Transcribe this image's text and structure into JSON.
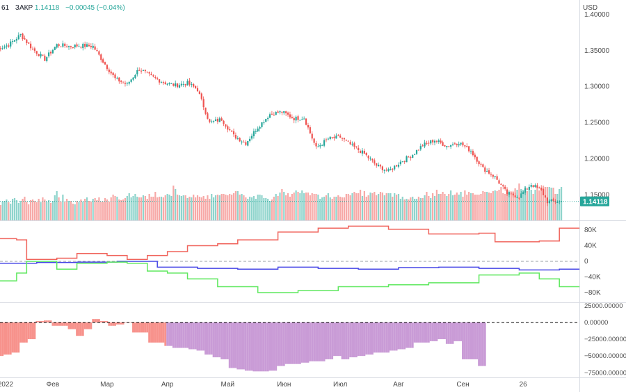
{
  "header": {
    "symbol_fragment": "61",
    "close_label": "ЗАКР",
    "close_value": "1.14118",
    "change": "−0.00045 (−0.04%)"
  },
  "currency_label": "USD",
  "last_price_tag": "1.14118",
  "colors": {
    "up": "#26a69a",
    "down": "#ef5350",
    "volume_up": "#8fd4cc",
    "volume_down": "#f7a9a7",
    "cot_red": "#f0645c",
    "cot_blue": "#4646e6",
    "cot_green": "#5ee85e",
    "hist_red": "#f7928c",
    "hist_purple": "#c99bd6"
  },
  "chart_data": [
    {
      "type": "candlestick",
      "title": "",
      "ylim": [
        1.115,
        1.42
      ],
      "y_ticks": [
        "1.40000",
        "1.35000",
        "1.30000",
        "1.25000",
        "1.20000",
        "1.15000"
      ],
      "x_ticks": [
        "2022",
        "Фев",
        "Мар",
        "Апр",
        "Май",
        "Июн",
        "Июл",
        "Авг",
        "Сен",
        "26"
      ],
      "close_anchors": [
        [
          0,
          1.352
        ],
        [
          6,
          1.358
        ],
        [
          12,
          1.372
        ],
        [
          18,
          1.352
        ],
        [
          24,
          1.338
        ],
        [
          30,
          1.358
        ],
        [
          36,
          1.356
        ],
        [
          42,
          1.357
        ],
        [
          48,
          1.356
        ],
        [
          53,
          1.335
        ],
        [
          59,
          1.311
        ],
        [
          65,
          1.303
        ],
        [
          71,
          1.325
        ],
        [
          77,
          1.314
        ],
        [
          83,
          1.306
        ],
        [
          89,
          1.302
        ],
        [
          95,
          1.305
        ],
        [
          100,
          1.296
        ],
        [
          106,
          1.25
        ],
        [
          112,
          1.255
        ],
        [
          118,
          1.232
        ],
        [
          124,
          1.222
        ],
        [
          130,
          1.244
        ],
        [
          136,
          1.262
        ],
        [
          142,
          1.265
        ],
        [
          148,
          1.256
        ],
        [
          153,
          1.257
        ],
        [
          159,
          1.215
        ],
        [
          165,
          1.228
        ],
        [
          171,
          1.23
        ],
        [
          177,
          1.218
        ],
        [
          183,
          1.207
        ],
        [
          189,
          1.191
        ],
        [
          195,
          1.183
        ],
        [
          201,
          1.196
        ],
        [
          207,
          1.206
        ],
        [
          212,
          1.219
        ],
        [
          218,
          1.226
        ],
        [
          224,
          1.218
        ],
        [
          230,
          1.223
        ],
        [
          236,
          1.211
        ],
        [
          242,
          1.187
        ],
        [
          248,
          1.175
        ],
        [
          254,
          1.152
        ],
        [
          260,
          1.148
        ],
        [
          266,
          1.165
        ],
        [
          271,
          1.156
        ],
        [
          274,
          1.141
        ]
      ],
      "last_close": 1.14118
    },
    {
      "type": "bar",
      "title": "",
      "x_ticks": [],
      "series": [
        {
          "values": [
            22,
            24,
            22,
            27,
            28,
            30,
            26,
            24,
            31,
            32,
            29,
            25,
            28,
            31,
            34,
            27,
            23,
            29,
            30,
            28,
            26,
            31,
            26,
            33,
            30,
            27,
            29,
            25,
            28,
            36,
            42,
            33,
            27,
            37,
            27,
            31,
            28,
            28,
            24,
            23,
            28,
            26,
            30,
            27,
            31,
            33,
            28,
            27,
            31,
            32,
            29,
            33,
            27,
            27,
            32,
            30,
            27,
            33,
            37,
            35,
            34,
            30,
            29,
            30,
            32,
            35,
            39,
            33,
            35,
            38,
            34,
            33,
            33,
            36,
            35,
            31,
            38,
            34,
            34,
            41,
            33,
            34,
            34,
            33,
            36,
            38,
            37,
            35,
            50,
            45,
            37,
            36,
            35,
            36,
            36,
            32,
            34,
            33,
            37,
            33,
            36,
            34,
            33,
            35,
            31,
            36,
            31,
            38,
            33,
            36,
            37,
            36,
            38,
            38,
            37,
            36,
            38,
            37,
            39,
            42,
            42,
            37,
            38,
            36,
            33,
            31,
            34,
            33,
            35,
            31,
            37,
            37,
            36,
            32,
            32,
            31,
            28,
            30,
            34,
            38,
            35,
            40,
            45,
            41,
            36,
            39,
            34,
            38,
            40,
            43,
            41,
            39,
            43,
            39,
            40,
            40,
            36,
            39,
            38,
            38,
            37,
            31,
            33,
            34,
            36,
            39,
            33,
            31,
            34,
            34,
            36,
            34,
            33,
            33,
            38,
            38,
            36,
            39,
            41,
            39,
            39,
            44,
            35,
            42,
            34,
            36,
            40,
            39,
            41,
            36,
            38,
            41,
            40,
            36,
            39,
            39,
            39,
            34,
            39,
            37,
            38,
            31,
            34,
            30,
            31,
            30,
            33,
            34,
            31,
            31,
            34,
            32,
            32,
            36,
            41,
            35,
            32,
            39,
            35,
            44,
            38,
            38,
            41,
            38,
            35,
            38,
            43,
            36,
            37,
            40,
            37,
            41,
            34,
            43,
            37,
            41,
            39,
            39,
            37,
            37,
            37,
            38,
            42,
            41,
            41,
            40,
            39,
            42,
            43,
            42,
            44,
            48,
            39,
            38,
            43,
            41,
            39,
            41,
            46,
            44,
            53,
            45,
            44,
            49,
            42,
            43,
            44,
            38,
            44,
            51,
            43,
            45,
            50,
            48,
            48,
            48,
            47,
            47,
            38,
            38,
            45,
            48
          ]
        }
      ]
    },
    {
      "type": "line",
      "title": "",
      "y_ticks": [
        "80K",
        "40K",
        "0",
        "−40K",
        "−80K"
      ],
      "ylim": [
        -105000,
        105000
      ],
      "series": [
        {
          "values": [
            [
              0,
              58000
            ],
            [
              10,
              55000
            ],
            [
              15,
              5000
            ],
            [
              30,
              8000
            ],
            [
              40,
              20000
            ],
            [
              55,
              15000
            ],
            [
              65,
              5000
            ],
            [
              75,
              15000
            ],
            [
              85,
              25000
            ],
            [
              95,
              40000
            ],
            [
              110,
              45000
            ],
            [
              120,
              55000
            ],
            [
              140,
              75000
            ],
            [
              160,
              85000
            ],
            [
              175,
              90000
            ],
            [
              195,
              82000
            ],
            [
              215,
              70000
            ],
            [
              240,
              72000
            ],
            [
              248,
              50000
            ],
            [
              270,
              52000
            ],
            [
              280,
              85000
            ],
            [
              290,
              85000
            ]
          ]
        },
        {
          "values": [
            [
              0,
              -5000
            ],
            [
              20,
              -3000
            ],
            [
              40,
              -2000
            ],
            [
              60,
              0
            ],
            [
              80,
              -15000
            ],
            [
              100,
              -18000
            ],
            [
              120,
              -20000
            ],
            [
              140,
              -15000
            ],
            [
              160,
              -18000
            ],
            [
              180,
              -20000
            ],
            [
              200,
              -16000
            ],
            [
              220,
              -15000
            ],
            [
              240,
              -18000
            ],
            [
              260,
              -22000
            ],
            [
              280,
              -20000
            ],
            [
              290,
              -20000
            ]
          ]
        },
        {
          "values": [
            [
              0,
              -50000
            ],
            [
              10,
              -30000
            ],
            [
              15,
              0
            ],
            [
              30,
              -20000
            ],
            [
              40,
              -5000
            ],
            [
              55,
              -2000
            ],
            [
              65,
              -5000
            ],
            [
              75,
              -25000
            ],
            [
              85,
              -30000
            ],
            [
              95,
              -45000
            ],
            [
              110,
              -65000
            ],
            [
              130,
              -80000
            ],
            [
              150,
              -75000
            ],
            [
              170,
              -65000
            ],
            [
              195,
              -60000
            ],
            [
              215,
              -55000
            ],
            [
              240,
              -35000
            ],
            [
              260,
              -30000
            ],
            [
              270,
              -45000
            ],
            [
              280,
              -65000
            ],
            [
              290,
              -65000
            ]
          ]
        }
      ]
    },
    {
      "type": "bar",
      "title": "",
      "y_ticks": [
        "25000.00000",
        "0.00000",
        "−25000.00000",
        "−50000.00000",
        "−75000.00000"
      ],
      "ylim": [
        -82000,
        30000
      ],
      "values": [
        -50000,
        -50000,
        -50000,
        -50000,
        -48000,
        -48000,
        -48000,
        -48000,
        -45000,
        -45000,
        -45000,
        -45000,
        -30000,
        -30000,
        -30000,
        -30000,
        -25000,
        -25000,
        -25000,
        -25000,
        2000,
        2000,
        2000,
        2000,
        3000,
        3000,
        3000,
        3000,
        -5000,
        -5000,
        -5000,
        -5000,
        -5000,
        -5000,
        -5000,
        -5000,
        -10000,
        -10000,
        -10000,
        -10000,
        -20000,
        -20000,
        -20000,
        -20000,
        -10000,
        -10000,
        -10000,
        -10000,
        5000,
        5000,
        5000,
        5000,
        2000,
        2000,
        2000,
        2000,
        -5000,
        -5000,
        -5000,
        -5000,
        -3000,
        -3000,
        -3000,
        -3000,
        0,
        0,
        0,
        0,
        -15000,
        -15000,
        -15000,
        -15000,
        -15000,
        -15000,
        -15000,
        -15000,
        -30000,
        -30000,
        -30000,
        -30000,
        -30000,
        -30000,
        -30000,
        -30000,
        -35000,
        -35000,
        -35000,
        -35000,
        -38000,
        -38000,
        -38000,
        -38000,
        -38000,
        -38000,
        -38000,
        -38000,
        -40000,
        -40000,
        -40000,
        -40000,
        -42000,
        -42000,
        -42000,
        -42000,
        -48000,
        -48000,
        -48000,
        -48000,
        -52000,
        -52000,
        -52000,
        -52000,
        -55000,
        -55000,
        -55000,
        -55000,
        -68000,
        -68000,
        -68000,
        -68000,
        -70000,
        -70000,
        -70000,
        -70000,
        -72000,
        -72000,
        -72000,
        -72000,
        -73000,
        -73000,
        -73000,
        -73000,
        -73000,
        -73000,
        -73000,
        -73000,
        -72000,
        -72000,
        -72000,
        -72000,
        -65000,
        -65000,
        -65000,
        -65000,
        -62000,
        -62000,
        -62000,
        -62000,
        -62000,
        -62000,
        -62000,
        -62000,
        -60000,
        -60000,
        -60000,
        -60000,
        -58000,
        -58000,
        -58000,
        -58000,
        -58000,
        -58000,
        -58000,
        -58000,
        -55000,
        -55000,
        -55000,
        -55000,
        -50000,
        -50000,
        -50000,
        -50000,
        -55000,
        -55000,
        -55000,
        -55000,
        -52000,
        -52000,
        -52000,
        -52000,
        -50000,
        -50000,
        -50000,
        -50000,
        -48000,
        -48000,
        -48000,
        -48000,
        -45000,
        -45000,
        -45000,
        -45000,
        -45000,
        -45000,
        -45000,
        -45000,
        -42000,
        -42000,
        -42000,
        -42000,
        -40000,
        -40000,
        -40000,
        -40000,
        -38000,
        -38000,
        -38000,
        -38000,
        -30000,
        -30000,
        -30000,
        -30000,
        -30000,
        -30000,
        -30000,
        -30000,
        -28000,
        -28000,
        -28000,
        -28000,
        -25000,
        -25000,
        -25000,
        -25000,
        -32000,
        -32000,
        -32000,
        -32000,
        -28000,
        -28000,
        -28000,
        -28000,
        -55000,
        -55000,
        -55000,
        -55000,
        -55000,
        -55000,
        -55000,
        -55000,
        -65000,
        -65000,
        -65000,
        -65000
      ]
    }
  ]
}
